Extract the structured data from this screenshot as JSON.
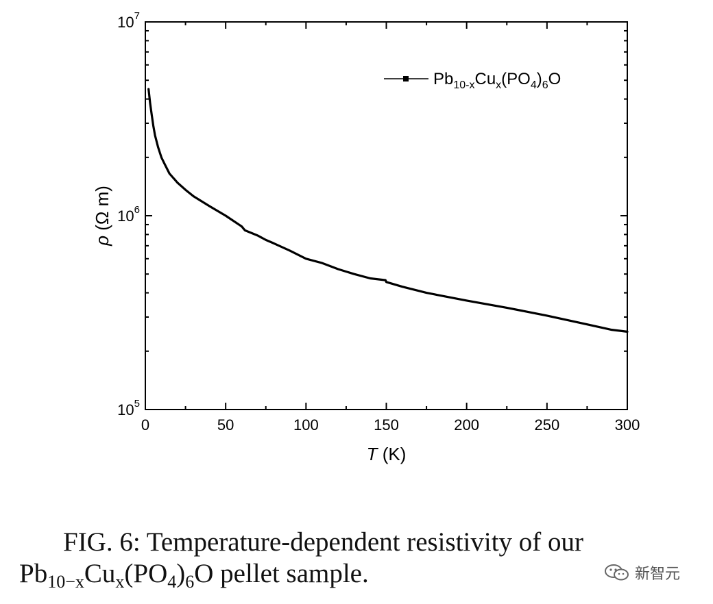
{
  "chart_data": {
    "type": "line",
    "title": "",
    "xlabel_symbol": "T",
    "xlabel_unit": " (K)",
    "ylabel_symbol": "ρ",
    "ylabel_unit": " (Ω m)",
    "xlim": [
      0,
      300
    ],
    "ylim": [
      100000,
      10000000
    ],
    "y_scale": "log",
    "x_ticks": [
      0,
      50,
      100,
      150,
      200,
      250,
      300
    ],
    "x_tick_labels": [
      "0",
      "50",
      "100",
      "150",
      "200",
      "250",
      "300"
    ],
    "y_ticks": [
      {
        "base": "10",
        "exp": "5",
        "value": 100000
      },
      {
        "base": "10",
        "exp": "6",
        "value": 1000000
      },
      {
        "base": "10",
        "exp": "7",
        "value": 10000000
      }
    ],
    "grid": false,
    "legend": {
      "placement": "top-right",
      "parts": [
        {
          "text": "Pb",
          "sub": false
        },
        {
          "text": "10-x",
          "sub": true
        },
        {
          "text": "Cu",
          "sub": false
        },
        {
          "text": "x",
          "sub": true
        },
        {
          "text": "(PO",
          "sub": false
        },
        {
          "text": "4",
          "sub": true
        },
        {
          "text": ")",
          "sub": false
        },
        {
          "text": "6",
          "sub": true
        },
        {
          "text": "O",
          "sub": false
        }
      ]
    },
    "series": [
      {
        "color": "#000000",
        "x": [
          2,
          3,
          4,
          5,
          6,
          8,
          10,
          12,
          15,
          20,
          25,
          30,
          40,
          50,
          60,
          62,
          70,
          75,
          80,
          90,
          100,
          110,
          120,
          130,
          140,
          149.5,
          150,
          160,
          175,
          200,
          225,
          250,
          275,
          290,
          300
        ],
        "y": [
          4500000,
          3800000,
          3300000,
          2900000,
          2600000,
          2250000,
          2000000,
          1850000,
          1650000,
          1480000,
          1360000,
          1260000,
          1120000,
          1000000,
          880000,
          840000,
          790000,
          750000,
          720000,
          660000,
          600000,
          570000,
          530000,
          500000,
          475000,
          465000,
          455000,
          430000,
          400000,
          365000,
          335000,
          305000,
          275000,
          258000,
          252000
        ]
      }
    ]
  },
  "caption": {
    "line1": "FIG. 6:  Temperature-dependent resistivity of our",
    "line2_parts": {
      "a": "Pb",
      "b": "10−x",
      "c": "Cu",
      "d": "x",
      "e": "(PO",
      "f": "4",
      "g": ")",
      "h": "6",
      "i": "O pellet sample."
    }
  },
  "watermark": {
    "text": "新智元"
  }
}
